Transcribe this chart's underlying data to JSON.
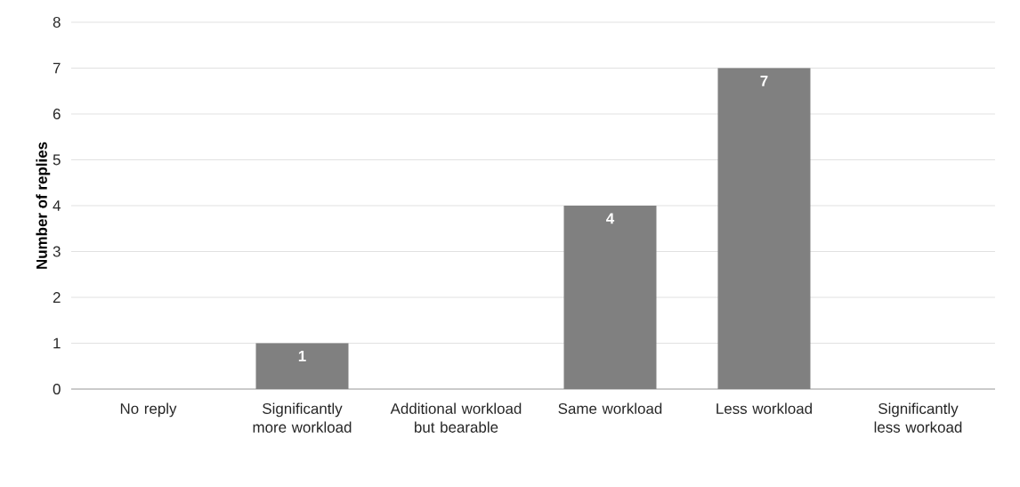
{
  "chart_data": {
    "type": "bar",
    "ylabel": "Number of replies",
    "categories": [
      "No reply",
      "Significantly more workload",
      "Additional workload but bearable",
      "Same workload",
      "Less workload",
      "Significantly less workoad"
    ],
    "values": [
      0,
      1,
      0,
      4,
      7,
      0
    ],
    "value_labels": [
      null,
      "1",
      null,
      "4",
      "7",
      null
    ],
    "color": "#808080",
    "ylim": [
      0,
      8
    ],
    "yticks": [
      0,
      1,
      2,
      3,
      4,
      5,
      6,
      7,
      8
    ],
    "grid": "y"
  }
}
